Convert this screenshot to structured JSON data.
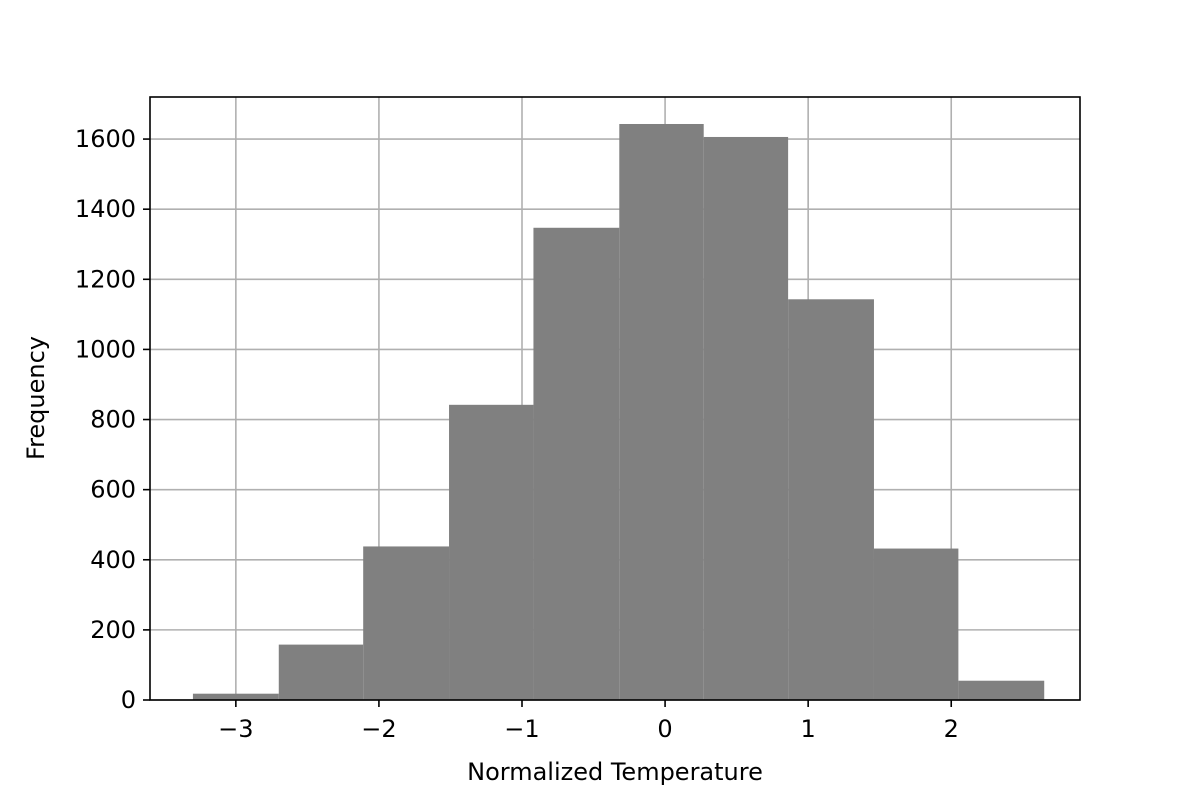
{
  "chart_data": {
    "type": "bar",
    "title": "",
    "xlabel": "Normalized Temperature",
    "ylabel": "Frequency",
    "xlim": [
      -3.6,
      2.9
    ],
    "ylim": [
      0,
      1720
    ],
    "x_ticks": [
      -3,
      -2,
      -1,
      0,
      1,
      2
    ],
    "x_tick_labels": [
      "−3",
      "−2",
      "−1",
      "0",
      "1",
      "2"
    ],
    "y_ticks": [
      0,
      200,
      400,
      600,
      800,
      1000,
      1200,
      1400,
      1600
    ],
    "y_tick_labels": [
      "0",
      "200",
      "400",
      "600",
      "800",
      "1000",
      "1200",
      "1400",
      "1600"
    ],
    "grid": true,
    "legend": "none",
    "bar_color": "#808080",
    "bins": [
      {
        "x0": -3.3,
        "x1": -2.7,
        "value": 18
      },
      {
        "x0": -2.7,
        "x1": -2.11,
        "value": 158
      },
      {
        "x0": -2.11,
        "x1": -1.51,
        "value": 438
      },
      {
        "x0": -1.51,
        "x1": -0.92,
        "value": 842
      },
      {
        "x0": -0.92,
        "x1": -0.32,
        "value": 1347
      },
      {
        "x0": -0.32,
        "x1": 0.27,
        "value": 1643
      },
      {
        "x0": 0.27,
        "x1": 0.86,
        "value": 1606
      },
      {
        "x0": 0.86,
        "x1": 1.46,
        "value": 1143
      },
      {
        "x0": 1.46,
        "x1": 2.05,
        "value": 432
      },
      {
        "x0": 2.05,
        "x1": 2.65,
        "value": 55
      }
    ]
  }
}
